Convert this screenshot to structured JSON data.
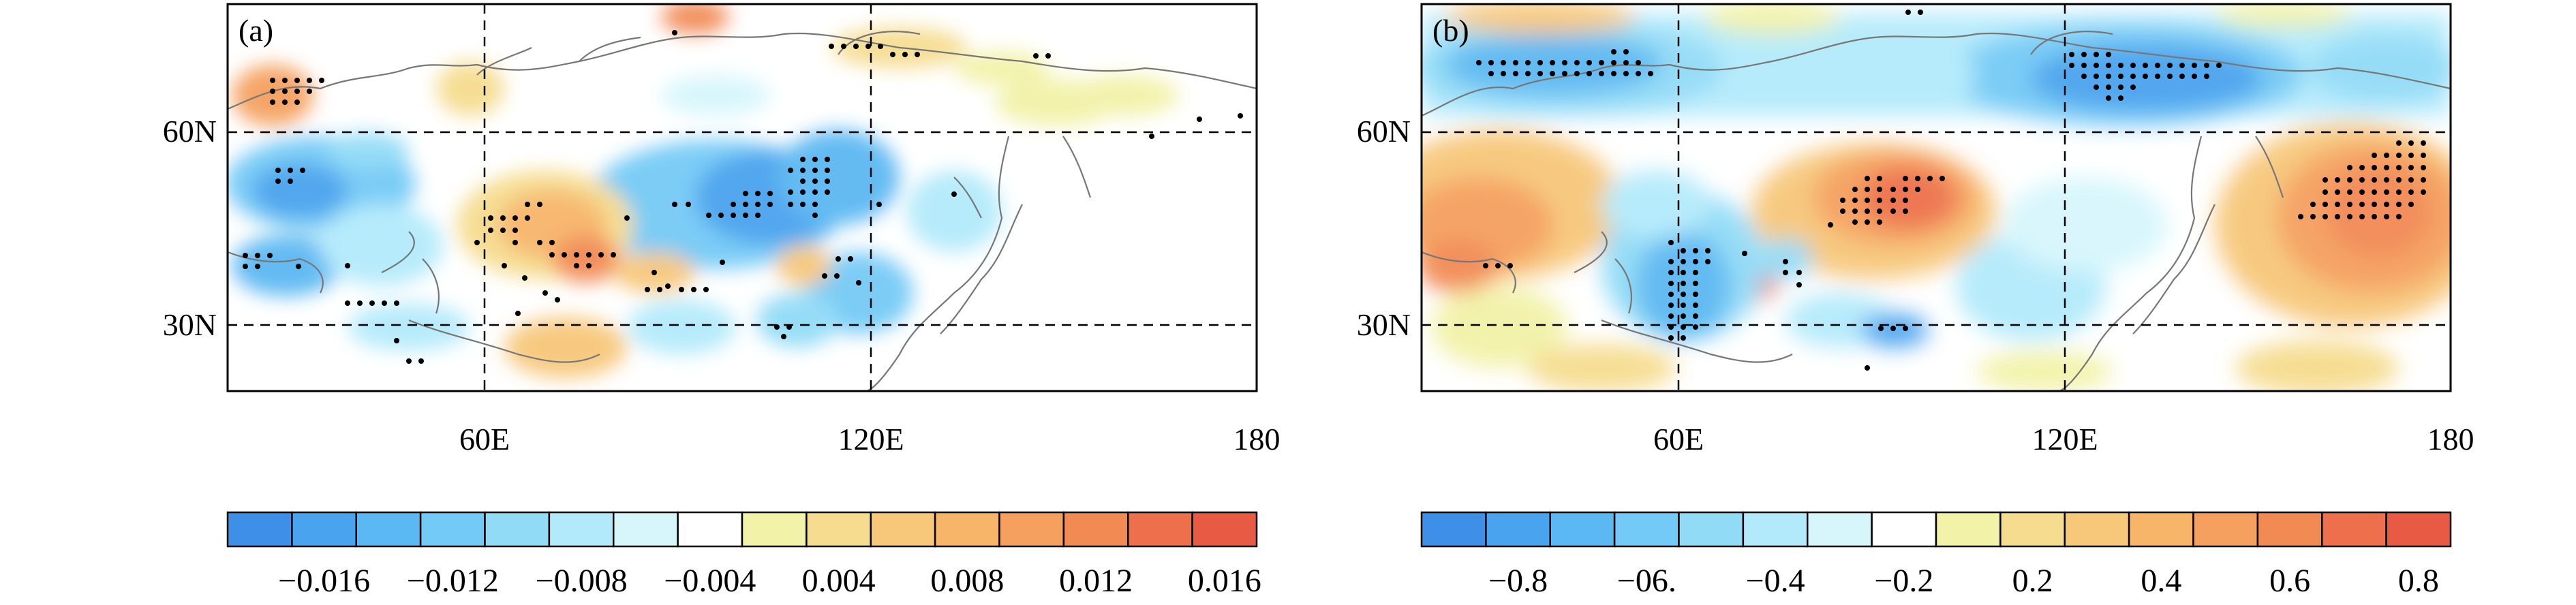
{
  "palette": [
    "#3d8fe8",
    "#4aa3ee",
    "#5cb8f2",
    "#74caf6",
    "#92dbf7",
    "#b3eafb",
    "#d6f6fc",
    "#ffffff",
    "#f2f2a8",
    "#f6dc8e",
    "#f7c77a",
    "#f7b56a",
    "#f5a05e",
    "#f28a54",
    "#ee6f4c",
    "#e85a44"
  ],
  "panels": [
    {
      "tag": "(a)",
      "lat_labels": [
        "60N",
        "30N"
      ],
      "lon_labels": [
        "60E",
        "120E",
        "180"
      ],
      "colorbar_labels": [
        "−0.016",
        "−0.012",
        "−0.008",
        "−0.004",
        "0.004",
        "0.008",
        "0.012",
        "0.016"
      ]
    },
    {
      "tag": "(b)",
      "lat_labels": [
        "60N",
        "30N"
      ],
      "lon_labels": [
        "60E",
        "120E",
        "180"
      ],
      "colorbar_labels": [
        "−0.8",
        "−06.",
        "−0.4",
        "−0.2",
        "0.2",
        "0.4",
        "0.6",
        "0.8"
      ]
    }
  ]
}
